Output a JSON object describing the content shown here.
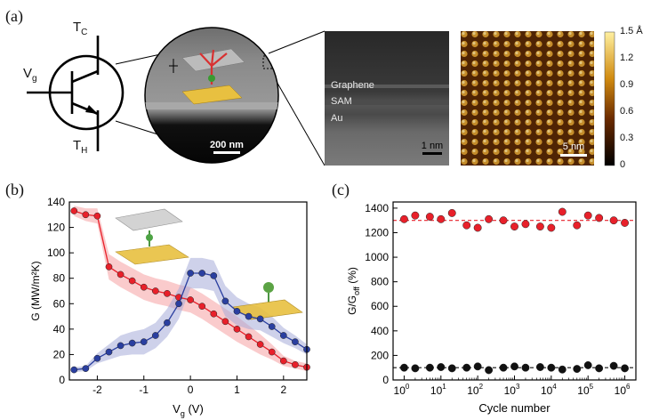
{
  "panels": {
    "a": "(a)",
    "b": "(b)",
    "c": "(c)"
  },
  "transistor": {
    "collector": "T",
    "collector_sub": "C",
    "gate": "V",
    "gate_sub": "g",
    "emitter": "T",
    "emitter_sub": "H"
  },
  "sem_scale": "200 nm",
  "tem": {
    "layers": [
      "Graphene",
      "SAM",
      "Au"
    ],
    "scale": "1 nm"
  },
  "afm": {
    "scale": "5 nm",
    "colorbar_ticks": [
      "1.5 Å",
      "1.2",
      "0.9",
      "0.6",
      "0.3",
      "0"
    ]
  },
  "chart_data": [
    {
      "type": "line",
      "panel": "b",
      "xlabel": "V",
      "xlabel_sub": "g",
      "xlabel_unit": " (V)",
      "ylabel": "G (MW/m²K)",
      "xlim": [
        -2.6,
        2.5
      ],
      "ylim": [
        0,
        140
      ],
      "xticks": [
        "-2",
        "-1",
        "0",
        "1",
        "2"
      ],
      "yticks": [
        "0",
        "20",
        "40",
        "60",
        "80",
        "100",
        "120",
        "140"
      ],
      "series": [
        {
          "color": "#e8202a",
          "band": "#f5a0a3",
          "x": [
            -2.5,
            -2.25,
            -2.0,
            -1.75,
            -1.5,
            -1.25,
            -1.0,
            -0.75,
            -0.5,
            -0.25,
            0.0,
            0.25,
            0.5,
            0.75,
            1.0,
            1.25,
            1.5,
            1.75,
            2.0,
            2.25,
            2.5
          ],
          "y": [
            133,
            130,
            129,
            89,
            83,
            78,
            73,
            70,
            68,
            65,
            63,
            58,
            52,
            46,
            40,
            34,
            28,
            22,
            15,
            12,
            10
          ],
          "band_width": [
            4,
            5,
            6,
            10,
            10,
            10,
            10,
            10,
            10,
            10,
            10,
            10,
            10,
            10,
            10,
            9,
            8,
            6,
            4,
            3,
            3
          ]
        },
        {
          "color": "#2a3fa0",
          "band": "#a6acd8",
          "x": [
            -2.5,
            -2.25,
            -2.0,
            -1.75,
            -1.5,
            -1.25,
            -1.0,
            -0.75,
            -0.5,
            -0.25,
            0.0,
            0.25,
            0.5,
            0.75,
            1.0,
            1.25,
            1.5,
            1.75,
            2.0,
            2.25,
            2.5
          ],
          "y": [
            8,
            9,
            17,
            22,
            27,
            29,
            30,
            35,
            45,
            60,
            84,
            84,
            82,
            62,
            54,
            50,
            48,
            42,
            35,
            30,
            24
          ],
          "band_width": [
            2,
            2,
            4,
            6,
            8,
            9,
            10,
            10,
            11,
            12,
            12,
            12,
            12,
            12,
            11,
            10,
            9,
            8,
            6,
            5,
            4
          ]
        }
      ]
    },
    {
      "type": "scatter",
      "panel": "c",
      "xlabel": "Cycle number",
      "ylabel": "G/G",
      "ylabel_sub": "off",
      "ylabel_unit": " (%)",
      "xscale": "log",
      "xlim": [
        0.5,
        2000000
      ],
      "ylim": [
        0,
        1450
      ],
      "xticks": [
        {
          "base": "10",
          "exp": "0"
        },
        {
          "base": "10",
          "exp": "1"
        },
        {
          "base": "10",
          "exp": "2"
        },
        {
          "base": "10",
          "exp": "3"
        },
        {
          "base": "10",
          "exp": "4"
        },
        {
          "base": "10",
          "exp": "5"
        },
        {
          "base": "10",
          "exp": "6"
        }
      ],
      "yticks": [
        "0",
        "200",
        "400",
        "600",
        "800",
        "1000",
        "1200",
        "1400"
      ],
      "series": [
        {
          "color": "#e8202a",
          "reference_line": 1300,
          "x": [
            1,
            2,
            5,
            10,
            20,
            50,
            100,
            200,
            500,
            1000,
            2000,
            5000,
            10000,
            20000,
            50000,
            100000,
            200000,
            500000,
            1000000
          ],
          "y": [
            1310,
            1340,
            1330,
            1310,
            1360,
            1260,
            1240,
            1310,
            1300,
            1250,
            1270,
            1250,
            1240,
            1370,
            1260,
            1340,
            1320,
            1300,
            1280
          ]
        },
        {
          "color": "#111111",
          "reference_line": 100,
          "x": [
            1,
            2,
            5,
            10,
            20,
            50,
            100,
            200,
            500,
            1000,
            2000,
            5000,
            10000,
            20000,
            50000,
            100000,
            200000,
            500000,
            1000000
          ],
          "y": [
            100,
            95,
            100,
            105,
            95,
            100,
            110,
            80,
            100,
            110,
            100,
            105,
            100,
            85,
            90,
            120,
            95,
            115,
            95
          ]
        }
      ]
    }
  ]
}
